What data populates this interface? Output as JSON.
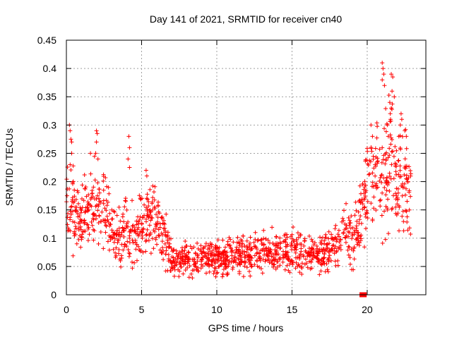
{
  "chart_data": {
    "type": "scatter",
    "title": "Day 141 of 2021, SRMTID for receiver cn40",
    "xlabel": "GPS time / hours",
    "ylabel": "SRMTID / TECUs",
    "xlim": [
      0,
      23.9
    ],
    "ylim": [
      0,
      0.45
    ],
    "xticks": [
      0,
      5,
      10,
      15,
      20
    ],
    "yticks": [
      0,
      0.05,
      0.1,
      0.15,
      0.2,
      0.25,
      0.3,
      0.35,
      0.4,
      0.45
    ],
    "xtick_labels": [
      "0",
      "5",
      "10",
      "15",
      "20"
    ],
    "ytick_labels": [
      "0",
      "0.05",
      "0.1",
      "0.15",
      "0.2",
      "0.25",
      "0.3",
      "0.35",
      "0.4",
      "0.45"
    ],
    "grid": true,
    "series_color": "#ff0000",
    "marker": "plus",
    "profile": {
      "x": [
        0,
        0.3,
        0.6,
        1.0,
        1.5,
        2.0,
        2.5,
        3.0,
        3.5,
        4.0,
        4.5,
        5.0,
        5.5,
        6.0,
        6.5,
        7.0,
        8.0,
        9.0,
        10.0,
        11.0,
        12.0,
        13.0,
        14.0,
        15.0,
        16.0,
        17.0,
        18.0,
        18.5,
        19.0,
        19.5,
        20.0,
        20.5,
        21.0,
        21.5,
        22.0,
        22.5,
        22.9
      ],
      "y": [
        0.14,
        0.18,
        0.13,
        0.12,
        0.16,
        0.17,
        0.16,
        0.11,
        0.1,
        0.11,
        0.1,
        0.12,
        0.14,
        0.13,
        0.1,
        0.06,
        0.06,
        0.065,
        0.065,
        0.065,
        0.07,
        0.075,
        0.075,
        0.08,
        0.075,
        0.07,
        0.09,
        0.11,
        0.1,
        0.13,
        0.2,
        0.22,
        0.21,
        0.23,
        0.2,
        0.2,
        0.18
      ]
    },
    "spread_profile": [
      0.04,
      0.045,
      0.04,
      0.035,
      0.04,
      0.045,
      0.04,
      0.03,
      0.028,
      0.03,
      0.03,
      0.035,
      0.035,
      0.035,
      0.03,
      0.02,
      0.018,
      0.018,
      0.018,
      0.018,
      0.02,
      0.02,
      0.02,
      0.022,
      0.02,
      0.02,
      0.025,
      0.03,
      0.03,
      0.035,
      0.05,
      0.05,
      0.06,
      0.07,
      0.05,
      0.05,
      0.04
    ],
    "outliers": [
      {
        "x": 0.2,
        "y": 0.3
      },
      {
        "x": 0.25,
        "y": 0.29
      },
      {
        "x": 0.3,
        "y": 0.275
      },
      {
        "x": 0.35,
        "y": 0.27
      },
      {
        "x": 0.25,
        "y": 0.23
      },
      {
        "x": 0.35,
        "y": 0.25
      },
      {
        "x": 2.0,
        "y": 0.29
      },
      {
        "x": 2.05,
        "y": 0.285
      },
      {
        "x": 2.0,
        "y": 0.27
      },
      {
        "x": 1.95,
        "y": 0.25
      },
      {
        "x": 2.1,
        "y": 0.24
      },
      {
        "x": 1.6,
        "y": 0.25
      },
      {
        "x": 4.15,
        "y": 0.28
      },
      {
        "x": 4.2,
        "y": 0.26
      },
      {
        "x": 4.1,
        "y": 0.24
      },
      {
        "x": 4.2,
        "y": 0.225
      },
      {
        "x": 5.3,
        "y": 0.22
      },
      {
        "x": 5.35,
        "y": 0.21
      },
      {
        "x": 21.0,
        "y": 0.41
      },
      {
        "x": 21.05,
        "y": 0.4
      },
      {
        "x": 21.1,
        "y": 0.39
      },
      {
        "x": 21.0,
        "y": 0.38
      },
      {
        "x": 21.15,
        "y": 0.37
      },
      {
        "x": 21.6,
        "y": 0.39
      },
      {
        "x": 21.7,
        "y": 0.385
      },
      {
        "x": 21.65,
        "y": 0.36
      },
      {
        "x": 21.8,
        "y": 0.35
      },
      {
        "x": 21.5,
        "y": 0.34
      },
      {
        "x": 21.6,
        "y": 0.33
      },
      {
        "x": 21.55,
        "y": 0.31
      },
      {
        "x": 21.35,
        "y": 0.3
      },
      {
        "x": 21.4,
        "y": 0.28
      },
      {
        "x": 22.25,
        "y": 0.32
      },
      {
        "x": 22.3,
        "y": 0.31
      },
      {
        "x": 22.2,
        "y": 0.3
      },
      {
        "x": 22.5,
        "y": 0.29
      },
      {
        "x": 22.6,
        "y": 0.28
      },
      {
        "x": 20.25,
        "y": 0.3
      },
      {
        "x": 20.35,
        "y": 0.28
      },
      {
        "x": 22.1,
        "y": 0.28
      }
    ],
    "zero_markers": {
      "x": [
        19.65,
        19.8
      ],
      "y": [
        0,
        0
      ]
    },
    "point_count": 1500,
    "x_step": 0.016
  }
}
